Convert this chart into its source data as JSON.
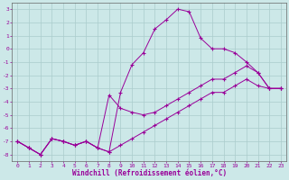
{
  "background_color": "#cce8e8",
  "grid_color": "#aacccc",
  "line_color": "#990099",
  "xlabel": "Windchill (Refroidissement éolien,°C)",
  "xlim": [
    -0.5,
    23.5
  ],
  "ylim": [
    -8.5,
    3.5
  ],
  "yticks": [
    3,
    2,
    1,
    0,
    -1,
    -2,
    -3,
    -4,
    -5,
    -6,
    -7,
    -8
  ],
  "xticks": [
    0,
    1,
    2,
    3,
    4,
    5,
    6,
    7,
    8,
    9,
    10,
    11,
    12,
    13,
    14,
    15,
    16,
    17,
    18,
    19,
    20,
    21,
    22,
    23
  ],
  "line1": {
    "x": [
      0,
      1,
      2,
      3,
      4,
      5,
      6,
      7,
      8,
      9,
      10,
      11,
      12,
      13,
      14,
      15,
      16,
      17,
      18,
      19,
      20,
      21,
      22,
      23
    ],
    "y": [
      -7.0,
      -7.5,
      -8.0,
      -6.8,
      -7.0,
      -7.3,
      -7.0,
      -7.5,
      -7.8,
      -3.3,
      -1.2,
      -0.3,
      1.5,
      2.2,
      3.0,
      2.8,
      0.8,
      0.0,
      0.0,
      -0.3,
      -1.0,
      -1.8,
      -3.0,
      -3.0
    ]
  },
  "line2": {
    "x": [
      0,
      1,
      2,
      3,
      4,
      5,
      6,
      7,
      8,
      9,
      10,
      11,
      12,
      13,
      14,
      15,
      16,
      17,
      18,
      19,
      20,
      21,
      22,
      23
    ],
    "y": [
      -7.0,
      -7.5,
      -8.0,
      -6.8,
      -7.0,
      -7.3,
      -7.0,
      -7.5,
      -3.5,
      -4.5,
      -4.8,
      -5.0,
      -4.8,
      -4.3,
      -3.8,
      -3.3,
      -2.8,
      -2.3,
      -2.3,
      -1.8,
      -1.3,
      -1.8,
      -3.0,
      -3.0
    ]
  },
  "line3": {
    "x": [
      0,
      1,
      2,
      3,
      4,
      5,
      6,
      7,
      8,
      9,
      10,
      11,
      12,
      13,
      14,
      15,
      16,
      17,
      18,
      19,
      20,
      21,
      22,
      23
    ],
    "y": [
      -7.0,
      -7.5,
      -8.0,
      -6.8,
      -7.0,
      -7.3,
      -7.0,
      -7.5,
      -7.8,
      -7.3,
      -6.8,
      -6.3,
      -5.8,
      -5.3,
      -4.8,
      -4.3,
      -3.8,
      -3.3,
      -3.3,
      -2.8,
      -2.3,
      -2.8,
      -3.0,
      -3.0
    ]
  }
}
